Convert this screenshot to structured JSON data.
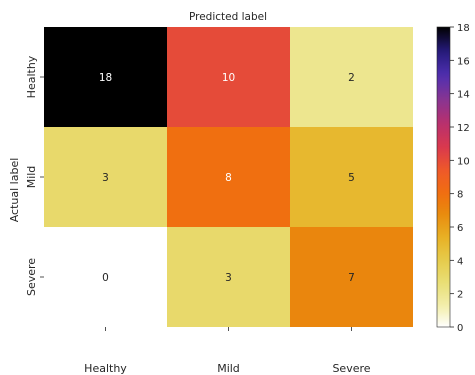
{
  "chart_data": {
    "type": "heatmap",
    "title": "Predicted label",
    "ylabel": "Actual label",
    "xlabel": "",
    "x_categories": [
      "Healthy",
      "Mild",
      "Severe"
    ],
    "y_categories": [
      "Healthy",
      "Mild",
      "Severe"
    ],
    "values": [
      [
        18,
        10,
        2
      ],
      [
        3,
        8,
        5
      ],
      [
        0,
        3,
        7
      ]
    ],
    "colorbar": {
      "range": [
        0,
        18
      ],
      "ticks": [
        "0",
        "2",
        "4",
        "6",
        "8",
        "10",
        "12",
        "14",
        "16",
        "18"
      ],
      "colormap": "CMRmap_r"
    },
    "annotation_colors": {
      "dark": "#262626",
      "light": "#ffffff"
    },
    "grid": false
  }
}
